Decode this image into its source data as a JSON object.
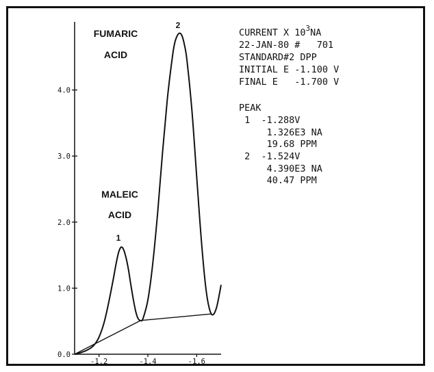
{
  "chart_data": {
    "type": "line",
    "x_ticks": [
      "-1.2",
      "-1.4",
      "-1.6"
    ],
    "y_ticks": [
      "0.0",
      "1.0",
      "2.0",
      "3.0",
      "4.0"
    ],
    "xlim": [
      -1.1,
      -1.7
    ],
    "ylim": [
      0.0,
      5.0
    ],
    "series": [
      {
        "x": [
          -1.1,
          -1.13,
          -1.16,
          -1.18,
          -1.2,
          -1.22,
          -1.24,
          -1.26,
          -1.27,
          -1.28,
          -1.29,
          -1.3,
          -1.31,
          -1.32,
          -1.33,
          -1.34,
          -1.35,
          -1.36,
          -1.37,
          -1.38,
          -1.4,
          -1.42,
          -1.44,
          -1.46,
          -1.48,
          -1.5,
          -1.51,
          -1.52,
          -1.53,
          -1.54,
          -1.55,
          -1.56,
          -1.58,
          -1.6,
          -1.62,
          -1.64,
          -1.66,
          -1.68,
          -1.7
        ],
        "y": [
          0.0,
          0.03,
          0.08,
          0.14,
          0.26,
          0.47,
          0.79,
          1.17,
          1.37,
          1.54,
          1.62,
          1.59,
          1.47,
          1.29,
          1.06,
          0.84,
          0.65,
          0.54,
          0.51,
          0.54,
          0.82,
          1.37,
          2.14,
          3.05,
          3.87,
          4.49,
          4.71,
          4.82,
          4.86,
          4.82,
          4.68,
          4.45,
          3.71,
          2.69,
          1.68,
          0.93,
          0.61,
          0.69,
          1.05
        ]
      },
      {
        "x": [
          -1.1,
          -1.37,
          -1.66
        ],
        "y": [
          0.0,
          0.51,
          0.61
        ]
      }
    ],
    "annotations": {
      "fumaric": [
        "FUMARIC",
        "ACID"
      ],
      "maleic": [
        "MALEIC",
        "ACID"
      ],
      "peak1_num": "1",
      "peak2_num": "2"
    },
    "info_block": {
      "line1_text": "CURRENT X 10",
      "line1_exp": "3",
      "line1_unit": "NA",
      "lines": [
        "22-JAN-80 #   701",
        "STANDARD#2 DPP",
        "INITIAL E -1.100 V",
        "FINAL E   -1.700 V"
      ]
    },
    "peak_table": {
      "title": "PEAK",
      "lines": [
        " 1  -1.288V",
        "     1.326E3 NA",
        "     19.68 PPM",
        " 2  -1.524V",
        "     4.390E3 NA",
        "     40.47 PPM"
      ]
    }
  }
}
